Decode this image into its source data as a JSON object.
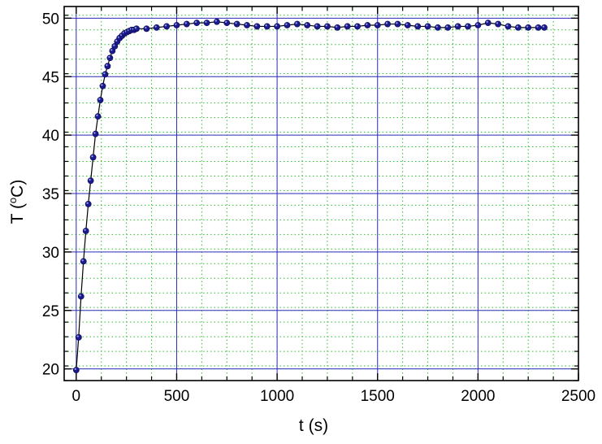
{
  "chart_data": {
    "type": "scatter",
    "xlabel": "t (s)",
    "ylabel_main": "T (",
    "ylabel_sup": "o",
    "ylabel_rest": "C)",
    "xlim": [
      -60,
      2500
    ],
    "ylim": [
      19,
      51
    ],
    "x_ticks": [
      0,
      500,
      1000,
      1500,
      2000,
      2500
    ],
    "y_ticks": [
      20,
      25,
      30,
      35,
      40,
      45,
      50
    ],
    "grid": true,
    "colors": {
      "marker": "#1a1a8c",
      "marker_highlight": "#8f95e0",
      "line": "#000000",
      "major_grid": "#2a2ab8",
      "minor_grid": "#2fbf2f"
    },
    "series": [
      {
        "x": [
          0,
          12,
          24,
          36,
          48,
          60,
          72,
          84,
          96,
          108,
          120,
          132,
          144,
          156,
          168,
          180,
          192,
          204,
          216,
          228,
          240,
          252,
          264,
          276,
          288,
          300,
          350,
          400,
          450,
          500,
          550,
          600,
          650,
          700,
          750,
          800,
          850,
          900,
          950,
          1000,
          1050,
          1100,
          1150,
          1200,
          1250,
          1300,
          1350,
          1400,
          1450,
          1500,
          1550,
          1600,
          1650,
          1700,
          1750,
          1800,
          1850,
          1900,
          1950,
          2000,
          2050,
          2100,
          2150,
          2200,
          2250,
          2300,
          2330
        ],
        "values": [
          19.9,
          22.7,
          26.2,
          29.2,
          31.8,
          34.1,
          36.1,
          38.1,
          40.1,
          41.6,
          43.0,
          44.2,
          45.2,
          45.9,
          46.6,
          47.2,
          47.6,
          48.0,
          48.3,
          48.5,
          48.7,
          48.8,
          48.9,
          49.0,
          49.0,
          49.1,
          49.1,
          49.2,
          49.3,
          49.4,
          49.5,
          49.6,
          49.6,
          49.7,
          49.6,
          49.5,
          49.4,
          49.3,
          49.3,
          49.3,
          49.4,
          49.5,
          49.4,
          49.3,
          49.3,
          49.2,
          49.3,
          49.3,
          49.4,
          49.4,
          49.5,
          49.5,
          49.4,
          49.3,
          49.3,
          49.2,
          49.2,
          49.3,
          49.3,
          49.4,
          49.6,
          49.5,
          49.3,
          49.2,
          49.2,
          49.2,
          49.2
        ]
      }
    ]
  }
}
